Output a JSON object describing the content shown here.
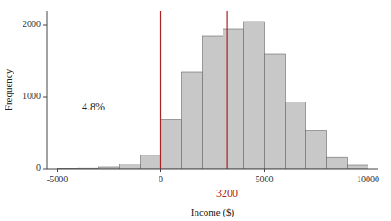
{
  "chart_data": {
    "type": "histogram",
    "title": "",
    "xlabel": "Income ($)",
    "ylabel": "Frequency",
    "bins": [
      -5000,
      -4000,
      -3000,
      -2000,
      -1000,
      0,
      1000,
      2000,
      3000,
      4000,
      5000,
      6000,
      7000,
      8000,
      9000,
      10000
    ],
    "values": [
      5,
      10,
      25,
      70,
      190,
      680,
      1350,
      1850,
      1950,
      2050,
      1600,
      930,
      530,
      160,
      50
    ],
    "color": "#c8c8c8",
    "xlim": [
      -5500,
      10500
    ],
    "ylim": [
      0,
      2200
    ],
    "xticks": [
      -5000,
      0,
      5000,
      10000
    ],
    "yticks": [
      0,
      1000,
      2000
    ],
    "grid": false,
    "vlines": [
      {
        "x": 0,
        "color": "#aa2222"
      },
      {
        "x": 3200,
        "color": "#aa2222",
        "label": "3200"
      }
    ],
    "annotations": [
      {
        "text": "4.8%",
        "x": -3800,
        "y": 850
      }
    ]
  }
}
